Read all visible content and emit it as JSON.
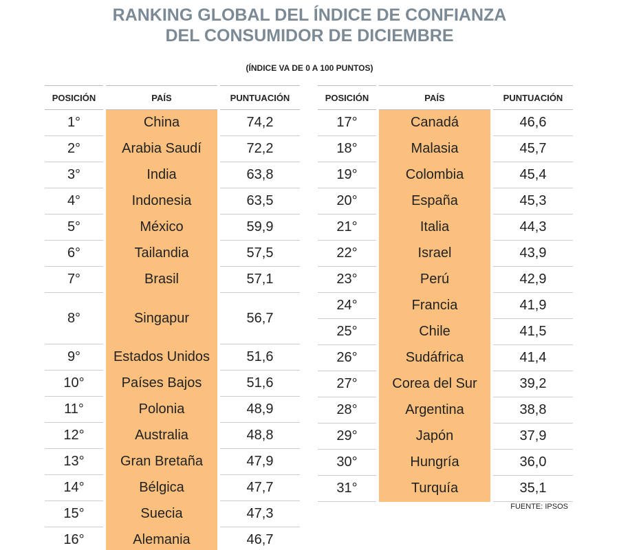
{
  "header": {
    "title": [
      "RANKING GLOBAL DEL ÍNDICE DE CONFIANZA",
      "DEL CONSUMIDOR DE DICIEMBRE"
    ],
    "subtitle": "(ÍNDICE VA DE 0 A 100 PUNTOS)"
  },
  "tables": [
    {
      "headers": [
        "POSICIÓN",
        "PAÍS",
        "PUNTUACIÓN"
      ],
      "rows": [
        [
          "1°",
          "China",
          "74,2"
        ],
        [
          "2°",
          "Arabia Saudí",
          "72,2"
        ],
        [
          "3°",
          "India",
          "63,8"
        ],
        [
          "4°",
          "Indonesia",
          "63,5"
        ],
        [
          "5°",
          "México",
          "59,9"
        ],
        [
          "6°",
          "Tailandia",
          "57,5"
        ],
        [
          "7°",
          "Brasil",
          "57,1"
        ],
        [
          "8°",
          "Singapur",
          "56,7"
        ],
        [
          "9°",
          "Estados Unidos",
          "51,6"
        ],
        [
          "10°",
          "Países Bajos",
          "51,6"
        ],
        [
          "11°",
          "Polonia",
          "48,9"
        ],
        [
          "12°",
          "Australia",
          "48,8"
        ],
        [
          "13°",
          "Gran Bretaña",
          "47,9"
        ],
        [
          "14°",
          "Bélgica",
          "47,7"
        ],
        [
          "15°",
          "Suecia",
          "47,3"
        ],
        [
          "16°",
          "Alemania",
          "46,7"
        ]
      ]
    },
    {
      "headers": [
        "POSICIÓN",
        "PAÍS",
        "PUNTUACIÓN"
      ],
      "rows": [
        [
          "17°",
          "Canadá",
          "46,6"
        ],
        [
          "18°",
          "Malasia",
          "45,7"
        ],
        [
          "19°",
          "Colombia",
          "45,4"
        ],
        [
          "20°",
          "España",
          "45,3"
        ],
        [
          "21°",
          "Italia",
          "44,3"
        ],
        [
          "22°",
          "Israel",
          "43,9"
        ],
        [
          "23°",
          "Perú",
          "42,9"
        ],
        [
          "24°",
          "Francia",
          "41,9"
        ],
        [
          "25°",
          "Chile",
          "41,5"
        ],
        [
          "26°",
          "Sudáfrica",
          "41,4"
        ],
        [
          "27°",
          "Corea del Sur",
          "39,2"
        ],
        [
          "28°",
          "Argentina",
          "38,8"
        ],
        [
          "29°",
          "Japón",
          "37,9"
        ],
        [
          "30°",
          "Hungría",
          "36,0"
        ],
        [
          "31°",
          "Turquía",
          "35,1"
        ]
      ]
    }
  ],
  "source": "FUENTE: IPSOS"
}
